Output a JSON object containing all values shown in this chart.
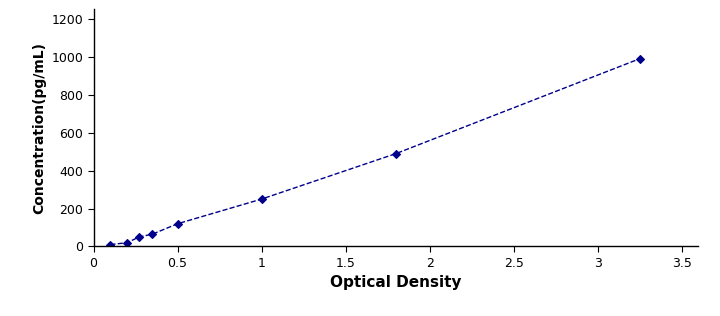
{
  "x": [
    0.1,
    0.2,
    0.27,
    0.35,
    0.5,
    1.0,
    1.8,
    3.25
  ],
  "y": [
    10,
    20,
    50,
    65,
    120,
    250,
    490,
    990
  ],
  "line_color": "#00008B",
  "marker": "D",
  "marker_size": 4,
  "marker_color": "#00008B",
  "xlabel": "Optical Density",
  "ylabel": "Concentration(pg/mL)",
  "xlim": [
    0,
    3.6
  ],
  "ylim": [
    0,
    1250
  ],
  "xticks": [
    0,
    0.5,
    1.0,
    1.5,
    2.0,
    2.5,
    3.0,
    3.5
  ],
  "yticks": [
    0,
    200,
    400,
    600,
    800,
    1000,
    1200
  ],
  "background_color": "#ffffff",
  "plot_bg_color": "#ffffff",
  "xlabel_fontsize": 11,
  "ylabel_fontsize": 10,
  "tick_fontsize": 9,
  "linewidth": 1.0,
  "linestyle": "--"
}
